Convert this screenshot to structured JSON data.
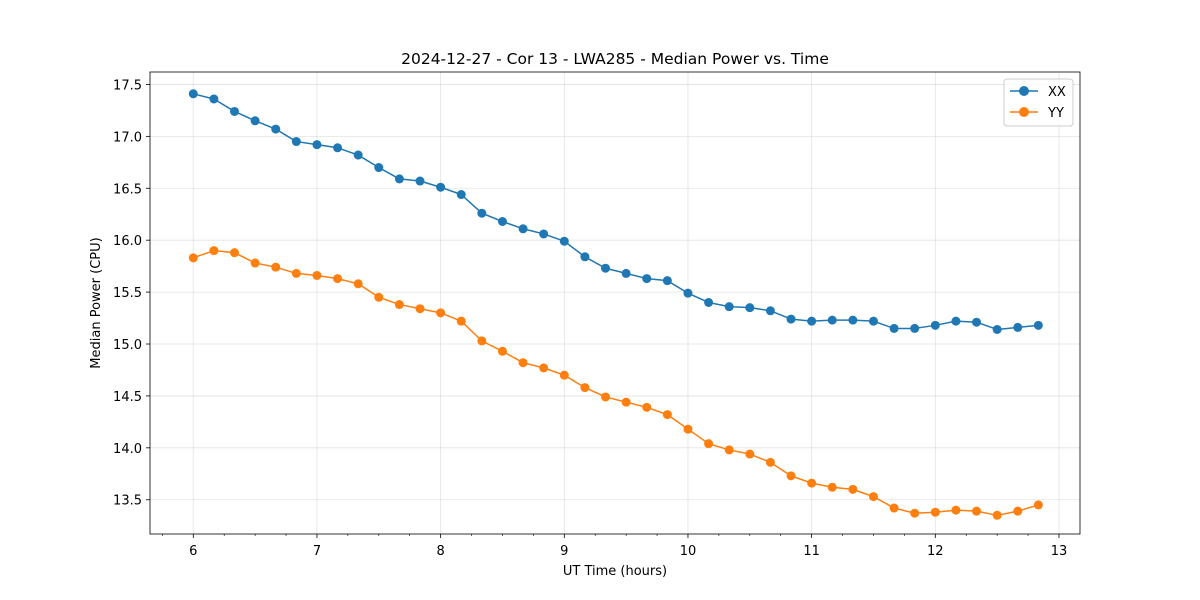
{
  "chart_data": {
    "type": "line",
    "title": "2024-12-27 - Cor 13 - LWA285 - Median Power vs. Time",
    "xlabel": "UT Time (hours)",
    "ylabel": "Median Power (CPU)",
    "xlim": [
      5.65,
      13.17
    ],
    "ylim": [
      13.17,
      17.62
    ],
    "xticks": [
      6,
      7,
      8,
      9,
      10,
      11,
      12,
      13
    ],
    "xtick_labels": [
      "6",
      "7",
      "8",
      "9",
      "10",
      "11",
      "12",
      "13"
    ],
    "xminor_step": 0.25,
    "yticks": [
      13.5,
      14.0,
      14.5,
      15.0,
      15.5,
      16.0,
      16.5,
      17.0,
      17.5
    ],
    "ytick_labels": [
      "13.5",
      "14.0",
      "14.5",
      "15.0",
      "15.5",
      "16.0",
      "16.5",
      "17.0",
      "17.5"
    ],
    "grid": true,
    "legend_position": "top-right",
    "x": [
      6.0,
      6.1667,
      6.3333,
      6.5,
      6.6667,
      6.8333,
      7.0,
      7.1667,
      7.3333,
      7.5,
      7.6667,
      7.8333,
      8.0,
      8.1667,
      8.3333,
      8.5,
      8.6667,
      8.8333,
      9.0,
      9.1667,
      9.3333,
      9.5,
      9.6667,
      9.8333,
      10.0,
      10.1667,
      10.3333,
      10.5,
      10.6667,
      10.8333,
      11.0,
      11.1667,
      11.3333,
      11.5,
      11.6667,
      11.8333,
      12.0,
      12.1667,
      12.3333,
      12.5,
      12.6667,
      12.8333
    ],
    "series": [
      {
        "name": "XX",
        "color": "#1f77b4",
        "values": [
          17.41,
          17.36,
          17.24,
          17.15,
          17.07,
          16.95,
          16.92,
          16.89,
          16.82,
          16.7,
          16.59,
          16.57,
          16.51,
          16.44,
          16.26,
          16.18,
          16.11,
          16.06,
          15.99,
          15.84,
          15.73,
          15.68,
          15.63,
          15.61,
          15.49,
          15.4,
          15.36,
          15.35,
          15.32,
          15.24,
          15.22,
          15.23,
          15.23,
          15.22,
          15.15,
          15.15,
          15.18,
          15.22,
          15.21,
          15.14,
          15.16,
          15.18
        ]
      },
      {
        "name": "YY",
        "color": "#ff7f0e",
        "values": [
          15.83,
          15.9,
          15.88,
          15.78,
          15.74,
          15.68,
          15.66,
          15.63,
          15.58,
          15.45,
          15.38,
          15.34,
          15.3,
          15.22,
          15.03,
          14.93,
          14.82,
          14.77,
          14.7,
          14.58,
          14.49,
          14.44,
          14.39,
          14.32,
          14.18,
          14.04,
          13.98,
          13.94,
          13.86,
          13.73,
          13.66,
          13.62,
          13.6,
          13.53,
          13.42,
          13.37,
          13.38,
          13.4,
          13.39,
          13.35,
          13.39,
          13.45
        ]
      }
    ]
  }
}
